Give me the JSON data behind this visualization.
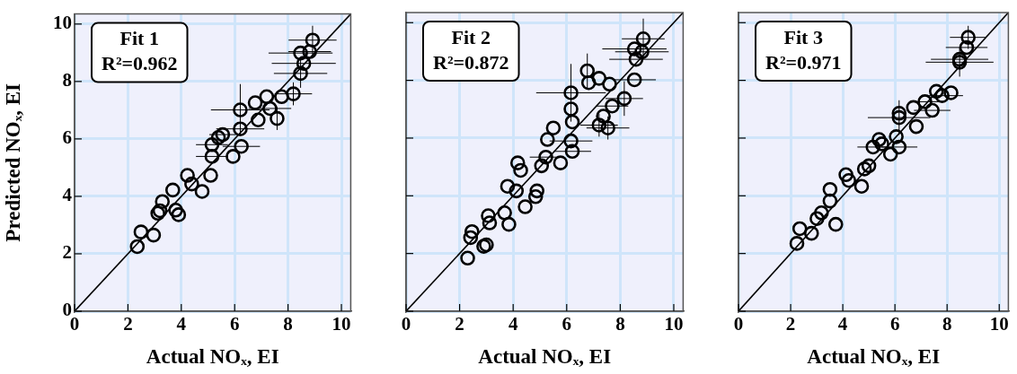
{
  "chart_data": [
    {
      "type": "scatter",
      "xlabel": "Actual NOₓ, EI",
      "ylabel": "Predicted NOₓ, EI",
      "annotations": [
        "Fit 1",
        "R²=0.962"
      ],
      "xlim": [
        0,
        10.35
      ],
      "ylim": [
        0,
        10.35
      ],
      "xticks": [
        0,
        2,
        4,
        6,
        8,
        10
      ],
      "yticks": [
        0,
        2,
        4,
        6,
        8,
        10
      ],
      "grid": true,
      "legend": false,
      "series": [
        {
          "marker": "circle",
          "color": "#000000",
          "x": [
            2.35,
            2.49,
            2.96,
            3.12,
            3.2,
            3.68,
            3.79,
            3.9,
            4.23,
            4.39,
            4.78,
            5.1,
            5.15,
            5.39,
            5.55,
            5.94,
            6.21,
            6.21,
            6.25,
            6.88,
            6.77,
            7.2,
            7.32,
            7.59,
            7.76,
            8.2,
            8.47,
            8.59,
            8.47,
            8.81,
            8.92,
            5.15,
            3.29
          ],
          "values": [
            2.25,
            2.76,
            2.65,
            3.41,
            3.5,
            4.22,
            3.52,
            3.36,
            4.73,
            4.43,
            4.17,
            4.73,
            5.39,
            6.05,
            6.15,
            5.39,
            7.01,
            6.35,
            5.74,
            6.66,
            7.26,
            7.47,
            7.06,
            6.71,
            7.47,
            7.57,
            8.28,
            8.63,
            8.99,
            9.04,
            9.44,
            5.8,
            3.82
          ],
          "xerrors": [
            null,
            null,
            null,
            null,
            null,
            null,
            null,
            null,
            null,
            null,
            null,
            null,
            0.6,
            null,
            0.5,
            null,
            1.1,
            0.9,
            0.7,
            null,
            null,
            null,
            0.8,
            null,
            null,
            0.7,
            1.0,
            1.2,
            1.2,
            0.8,
            0.9,
            0.6,
            null
          ],
          "errors": [
            null,
            null,
            null,
            null,
            null,
            null,
            null,
            null,
            null,
            null,
            null,
            null,
            null,
            null,
            null,
            null,
            0.9,
            null,
            null,
            null,
            null,
            null,
            null,
            0.4,
            null,
            0.4,
            0.5,
            null,
            null,
            null,
            0.5,
            null,
            null
          ]
        },
        {
          "type": "line",
          "color": "#000000",
          "x": [
            0,
            10.35
          ],
          "values": [
            0,
            10.35
          ]
        }
      ]
    },
    {
      "type": "scatter",
      "xlabel": "Actual NOₓ, EI",
      "annotations": [
        "Fit 2",
        "R²=0.872"
      ],
      "xlim": [
        0,
        10.35
      ],
      "ylim": [
        0,
        10.35
      ],
      "xticks": [
        0,
        2,
        4,
        6,
        8,
        10
      ],
      "yticks": [
        0,
        2,
        4,
        6,
        8,
        10
      ],
      "tick_labels": "x",
      "grid": true,
      "legend": false,
      "series": [
        {
          "marker": "circle",
          "color": "#000000",
          "x": [
            2.3,
            2.46,
            2.41,
            2.9,
            3.0,
            3.07,
            3.12,
            3.68,
            3.84,
            3.79,
            4.12,
            4.17,
            4.28,
            4.45,
            4.89,
            4.84,
            5.06,
            5.22,
            5.28,
            5.5,
            5.77,
            6.16,
            6.16,
            6.21,
            6.16,
            6.21,
            6.77,
            6.82,
            7.21,
            7.6,
            7.21,
            7.54,
            7.37,
            7.7,
            8.15,
            8.53,
            8.59,
            8.53,
            8.81,
            8.86
          ],
          "values": [
            1.84,
            2.76,
            2.55,
            2.25,
            2.3,
            3.31,
            3.06,
            3.41,
            3.01,
            4.33,
            4.17,
            5.14,
            4.88,
            3.62,
            4.17,
            3.97,
            5.04,
            5.34,
            5.95,
            6.35,
            5.14,
            7.57,
            7.01,
            6.56,
            5.9,
            5.54,
            8.33,
            7.92,
            8.07,
            7.87,
            6.45,
            6.35,
            6.76,
            7.11,
            7.37,
            8.02,
            8.73,
            9.09,
            8.99,
            9.44
          ],
          "xerrors": [
            null,
            null,
            null,
            null,
            null,
            null,
            null,
            null,
            null,
            null,
            null,
            null,
            null,
            null,
            null,
            null,
            null,
            0.6,
            null,
            null,
            null,
            1.3,
            null,
            null,
            0.8,
            0.7,
            null,
            null,
            null,
            null,
            0.7,
            0.8,
            null,
            0.6,
            0.7,
            0.8,
            1.0,
            1.2,
            1.0,
            0.8
          ],
          "errors": [
            null,
            null,
            null,
            null,
            null,
            null,
            null,
            null,
            null,
            null,
            null,
            null,
            null,
            null,
            null,
            null,
            null,
            null,
            null,
            null,
            null,
            1.0,
            null,
            null,
            null,
            null,
            0.6,
            null,
            null,
            null,
            0.4,
            0.4,
            null,
            null,
            0.6,
            null,
            null,
            null,
            null,
            0.7
          ]
        },
        {
          "type": "line",
          "color": "#000000",
          "x": [
            0,
            10.35
          ],
          "values": [
            0,
            10.35
          ]
        }
      ]
    },
    {
      "type": "scatter",
      "xlabel": "Actual NOₓ, EI",
      "annotations": [
        "Fit 3",
        "R²=0.971"
      ],
      "xlim": [
        0,
        10.35
      ],
      "ylim": [
        0,
        10.35
      ],
      "xticks": [
        0,
        2,
        4,
        6,
        8,
        10
      ],
      "yticks": [
        0,
        2,
        4,
        6,
        8,
        10
      ],
      "tick_labels": "x",
      "grid": true,
      "legend": false,
      "series": [
        {
          "marker": "circle",
          "color": "#000000",
          "x": [
            2.24,
            2.35,
            2.8,
            3.01,
            3.18,
            3.51,
            3.73,
            3.51,
            4.12,
            4.23,
            4.72,
            4.83,
            5.0,
            5.16,
            5.39,
            5.5,
            5.83,
            6.05,
            6.16,
            6.16,
            6.16,
            6.71,
            6.82,
            7.15,
            7.43,
            7.59,
            7.81,
            8.15,
            8.48,
            8.48,
            8.75,
            8.81
          ],
          "values": [
            2.35,
            2.86,
            2.7,
            3.21,
            3.41,
            3.82,
            3.01,
            4.22,
            4.73,
            4.53,
            4.33,
            4.93,
            5.04,
            5.69,
            5.95,
            5.8,
            5.44,
            6.05,
            5.69,
            6.71,
            6.86,
            7.06,
            6.4,
            7.26,
            6.96,
            7.62,
            7.47,
            7.57,
            8.63,
            8.73,
            9.14,
            9.49
          ],
          "xerrors": [
            null,
            null,
            null,
            null,
            null,
            null,
            null,
            null,
            null,
            null,
            null,
            null,
            null,
            0.6,
            null,
            null,
            null,
            null,
            0.7,
            1.2,
            null,
            null,
            null,
            0.6,
            0.7,
            null,
            0.8,
            null,
            1.3,
            1.1,
            0.8,
            0.7
          ],
          "errors": [
            null,
            null,
            null,
            null,
            null,
            null,
            null,
            null,
            null,
            null,
            null,
            null,
            null,
            null,
            null,
            null,
            null,
            null,
            null,
            0.6,
            null,
            null,
            null,
            null,
            null,
            null,
            null,
            null,
            0.5,
            null,
            null,
            0.4
          ]
        },
        {
          "type": "line",
          "color": "#000000",
          "x": [
            0,
            10.35
          ],
          "values": [
            0,
            10.35
          ]
        }
      ]
    }
  ]
}
